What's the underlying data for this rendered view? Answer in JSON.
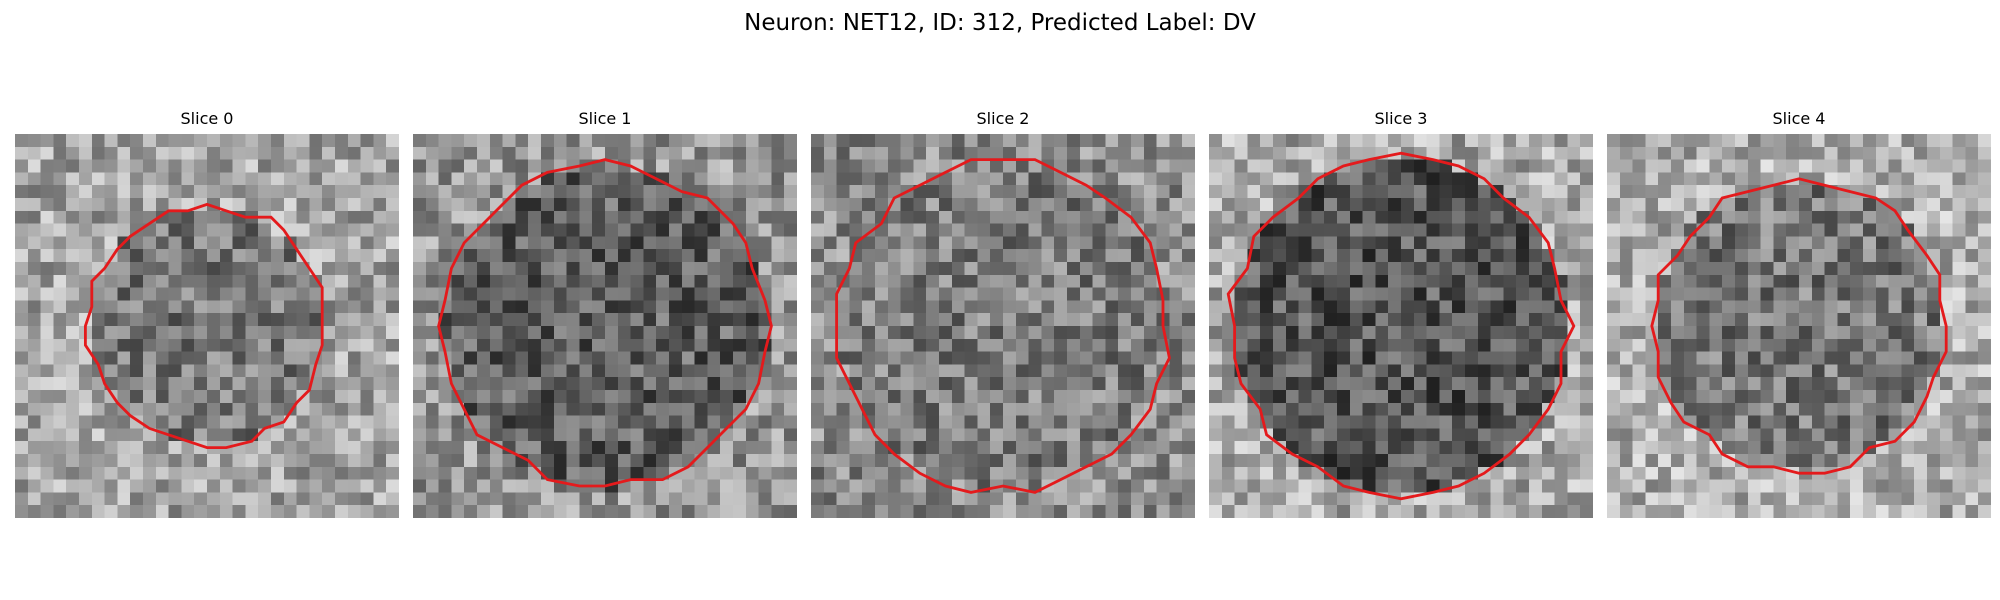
{
  "figure": {
    "title": "Neuron: NET12, ID: 312, Predicted Label: DV"
  },
  "contour_color": "#e41a1c",
  "panels": [
    {
      "title": "Slice 0",
      "seed": 11,
      "mean": 120,
      "outer_mean": 165,
      "radius": 0.62
    },
    {
      "title": "Slice 1",
      "seed": 23,
      "mean": 95,
      "outer_mean": 150,
      "radius": 0.84
    },
    {
      "title": "Slice 2",
      "seed": 37,
      "mean": 125,
      "outer_mean": 140,
      "radius": 0.86
    },
    {
      "title": "Slice 3",
      "seed": 41,
      "mean": 85,
      "outer_mean": 170,
      "radius": 0.88
    },
    {
      "title": "Slice 4",
      "seed": 53,
      "mean": 120,
      "outer_mean": 175,
      "radius": 0.76
    }
  ]
}
